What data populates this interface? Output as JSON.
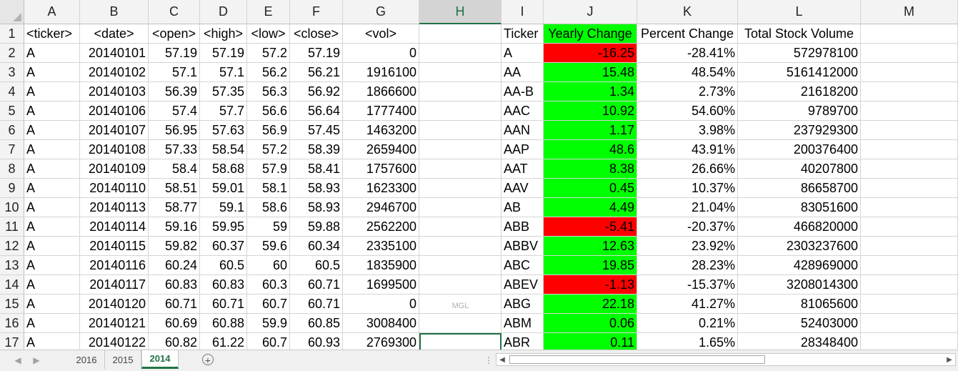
{
  "columns": [
    "A",
    "B",
    "C",
    "D",
    "E",
    "F",
    "G",
    "H",
    "I",
    "J",
    "K",
    "L",
    "M"
  ],
  "selected_column": "H",
  "rows": [
    {
      "n": "1",
      "v": [
        "<ticker>",
        "<date>",
        "<open>",
        "<high>",
        "<low>",
        "<close>",
        "<vol>",
        "",
        "Ticker",
        "Yearly Change",
        "Percent Change",
        "Total Stock Volume",
        ""
      ]
    },
    {
      "n": "2",
      "v": [
        "A",
        "20140101",
        "57.19",
        "57.19",
        "57.2",
        "57.19",
        "0",
        "",
        "A",
        "-16.25",
        "-28.41%",
        "572978100",
        ""
      ]
    },
    {
      "n": "3",
      "v": [
        "A",
        "20140102",
        "57.1",
        "57.1",
        "56.2",
        "56.21",
        "1916100",
        "",
        "AA",
        "15.48",
        "48.54%",
        "5161412000",
        ""
      ]
    },
    {
      "n": "4",
      "v": [
        "A",
        "20140103",
        "56.39",
        "57.35",
        "56.3",
        "56.92",
        "1866600",
        "",
        "AA-B",
        "1.34",
        "2.73%",
        "21618200",
        ""
      ]
    },
    {
      "n": "5",
      "v": [
        "A",
        "20140106",
        "57.4",
        "57.7",
        "56.6",
        "56.64",
        "1777400",
        "",
        "AAC",
        "10.92",
        "54.60%",
        "9789700",
        ""
      ]
    },
    {
      "n": "6",
      "v": [
        "A",
        "20140107",
        "56.95",
        "57.63",
        "56.9",
        "57.45",
        "1463200",
        "",
        "AAN",
        "1.17",
        "3.98%",
        "237929300",
        ""
      ]
    },
    {
      "n": "7",
      "v": [
        "A",
        "20140108",
        "57.33",
        "58.54",
        "57.2",
        "58.39",
        "2659400",
        "",
        "AAP",
        "48.6",
        "43.91%",
        "200376400",
        ""
      ]
    },
    {
      "n": "8",
      "v": [
        "A",
        "20140109",
        "58.4",
        "58.68",
        "57.9",
        "58.41",
        "1757600",
        "",
        "AAT",
        "8.38",
        "26.66%",
        "40207800",
        ""
      ]
    },
    {
      "n": "9",
      "v": [
        "A",
        "20140110",
        "58.51",
        "59.01",
        "58.1",
        "58.93",
        "1623300",
        "",
        "AAV",
        "0.45",
        "10.37%",
        "86658700",
        ""
      ]
    },
    {
      "n": "10",
      "v": [
        "A",
        "20140113",
        "58.77",
        "59.1",
        "58.6",
        "58.93",
        "2946700",
        "",
        "AB",
        "4.49",
        "21.04%",
        "83051600",
        ""
      ]
    },
    {
      "n": "11",
      "v": [
        "A",
        "20140114",
        "59.16",
        "59.95",
        "59",
        "59.88",
        "2562200",
        "",
        "ABB",
        "-5.41",
        "-20.37%",
        "466820000",
        ""
      ]
    },
    {
      "n": "12",
      "v": [
        "A",
        "20140115",
        "59.82",
        "60.37",
        "59.6",
        "60.34",
        "2335100",
        "",
        "ABBV",
        "12.63",
        "23.92%",
        "2303237600",
        ""
      ]
    },
    {
      "n": "13",
      "v": [
        "A",
        "20140116",
        "60.24",
        "60.5",
        "60",
        "60.5",
        "1835900",
        "",
        "ABC",
        "19.85",
        "28.23%",
        "428969000",
        ""
      ]
    },
    {
      "n": "14",
      "v": [
        "A",
        "20140117",
        "60.83",
        "60.83",
        "60.3",
        "60.71",
        "1699500",
        "",
        "ABEV",
        "-1.13",
        "-15.37%",
        "3208014300",
        ""
      ]
    },
    {
      "n": "15",
      "v": [
        "A",
        "20140120",
        "60.71",
        "60.71",
        "60.7",
        "60.71",
        "0",
        "",
        "ABG",
        "22.18",
        "41.27%",
        "81065600",
        ""
      ]
    },
    {
      "n": "16",
      "v": [
        "A",
        "20140121",
        "60.69",
        "60.88",
        "59.9",
        "60.85",
        "3008400",
        "",
        "ABM",
        "0.06",
        "0.21%",
        "52403000",
        ""
      ]
    },
    {
      "n": "17",
      "v": [
        "A",
        "20140122",
        "60.82",
        "61.22",
        "60.7",
        "60.93",
        "2769300",
        "",
        "ABR",
        "0.11",
        "1.65%",
        "28348400",
        ""
      ]
    }
  ],
  "colors": {
    "positive": "#00ff00",
    "negative": "#ff0000",
    "accent": "#217346"
  },
  "watermark": "MGL",
  "active_cell": "H17",
  "sheet_tabs": [
    {
      "label": "2016",
      "active": false
    },
    {
      "label": "2015",
      "active": false
    },
    {
      "label": "2014",
      "active": true
    }
  ],
  "icons": {
    "nav_prev": "triangle-left-icon",
    "nav_next": "triangle-right-icon",
    "add_sheet": "plus-circle-icon"
  }
}
